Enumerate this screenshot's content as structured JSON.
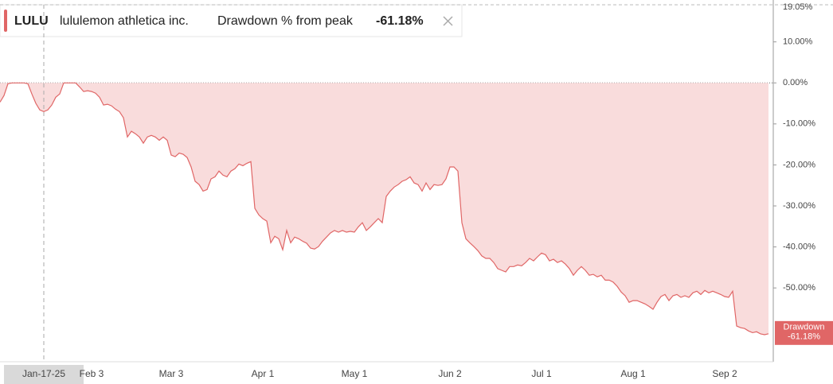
{
  "chart_data": {
    "type": "area",
    "legend": {
      "ticker": "LULU",
      "company": "lululemon athletica inc.",
      "metric": "Drawdown % from peak"
    },
    "crosshair_category": "Jan-17-25",
    "categories": [
      null,
      null,
      null,
      null,
      null,
      null,
      null,
      null,
      null,
      null,
      null,
      "Jan-17-25",
      null,
      null,
      null,
      null,
      null,
      null,
      null,
      null,
      null,
      null,
      null,
      "Feb 3",
      null,
      null,
      null,
      null,
      null,
      null,
      null,
      null,
      null,
      null,
      null,
      null,
      null,
      null,
      null,
      null,
      null,
      null,
      null,
      "Mar 3",
      null,
      null,
      null,
      null,
      null,
      null,
      null,
      null,
      null,
      null,
      null,
      null,
      null,
      null,
      null,
      null,
      null,
      null,
      null,
      null,
      null,
      null,
      "Apr 1",
      null,
      null,
      null,
      null,
      null,
      null,
      null,
      null,
      null,
      null,
      null,
      null,
      null,
      null,
      null,
      null,
      null,
      null,
      null,
      null,
      null,
      null,
      "May 1",
      null,
      null,
      null,
      null,
      null,
      null,
      null,
      null,
      null,
      null,
      null,
      null,
      null,
      null,
      null,
      null,
      null,
      null,
      null,
      null,
      null,
      null,
      null,
      "Jun 2",
      null,
      null,
      null,
      null,
      null,
      null,
      null,
      null,
      null,
      null,
      null,
      null,
      null,
      null,
      null,
      null,
      null,
      null,
      null,
      null,
      null,
      null,
      "Jul 1",
      null,
      null,
      null,
      null,
      null,
      null,
      null,
      null,
      null,
      null,
      null,
      null,
      null,
      null,
      null,
      null,
      null,
      null,
      null,
      null,
      null,
      null,
      "Aug 1",
      null,
      null,
      null,
      null,
      null,
      null,
      null,
      null,
      null,
      null,
      null,
      null,
      null,
      null,
      null,
      null,
      null,
      null,
      null,
      null,
      null,
      null,
      "Sep 2",
      null,
      null,
      null,
      null,
      null,
      null,
      null,
      null,
      null,
      null,
      null
    ],
    "series": [
      {
        "name": "Drawdown",
        "color": "#e06666",
        "fill": "#f9dcdc",
        "value_label": "-61.18%",
        "values": [
          -4.7,
          -3.1,
          -0.2,
          0,
          0,
          0,
          0,
          -0.2,
          -2.7,
          -5.0,
          -6.6,
          -7.0,
          -6.6,
          -5.4,
          -3.5,
          -2.7,
          0,
          0,
          0,
          0,
          -1.0,
          -2.1,
          -1.9,
          -2.1,
          -2.5,
          -3.5,
          -5.4,
          -5.2,
          -5.6,
          -6.4,
          -7.0,
          -8.5,
          -13.2,
          -11.8,
          -12.4,
          -13.2,
          -14.7,
          -13.2,
          -12.8,
          -13.2,
          -14.0,
          -13.2,
          -14.0,
          -17.6,
          -18.0,
          -17.1,
          -17.4,
          -18.2,
          -20.5,
          -24.0,
          -24.8,
          -26.4,
          -26.0,
          -23.4,
          -22.9,
          -21.5,
          -22.5,
          -22.9,
          -21.5,
          -20.9,
          -19.8,
          -20.2,
          -19.6,
          -19.2,
          -30.6,
          -32.2,
          -33.1,
          -33.7,
          -39.0,
          -37.4,
          -38.0,
          -40.7,
          -36.0,
          -39.0,
          -37.6,
          -38.0,
          -38.6,
          -39.1,
          -40.3,
          -40.5,
          -39.9,
          -38.6,
          -37.6,
          -36.6,
          -36.0,
          -36.4,
          -36.0,
          -36.4,
          -36.2,
          -36.4,
          -35.1,
          -34.1,
          -36.0,
          -35.1,
          -34.1,
          -33.1,
          -34.1,
          -27.7,
          -26.4,
          -25.4,
          -24.8,
          -24.0,
          -23.6,
          -22.9,
          -24.4,
          -24.8,
          -26.4,
          -24.4,
          -26.0,
          -24.8,
          -25.0,
          -24.8,
          -23.4,
          -20.5,
          -20.5,
          -21.5,
          -34.1,
          -38.0,
          -39.0,
          -39.9,
          -40.9,
          -42.2,
          -42.8,
          -42.8,
          -43.8,
          -45.3,
          -45.7,
          -46.1,
          -44.8,
          -44.8,
          -44.4,
          -44.6,
          -43.8,
          -42.8,
          -43.4,
          -42.4,
          -41.5,
          -41.9,
          -43.4,
          -43.0,
          -43.8,
          -43.4,
          -44.2,
          -45.3,
          -46.9,
          -45.7,
          -44.8,
          -45.7,
          -46.9,
          -46.7,
          -47.3,
          -46.9,
          -48.1,
          -48.1,
          -48.6,
          -49.6,
          -51.0,
          -51.9,
          -53.5,
          -53.1,
          -53.1,
          -53.5,
          -53.9,
          -54.5,
          -55.2,
          -53.5,
          -52.1,
          -51.6,
          -53.1,
          -51.9,
          -51.6,
          -52.3,
          -51.9,
          -52.3,
          -51.2,
          -50.8,
          -51.6,
          -50.6,
          -51.2,
          -50.8,
          -51.2,
          -51.6,
          -52.1,
          -52.3,
          -50.8,
          -59.3,
          -59.7,
          -59.9,
          -60.5,
          -60.9,
          -60.7,
          -61.2,
          -61.4,
          -61.18
        ]
      }
    ],
    "ylim": [
      -68,
      19.05
    ],
    "yticks": [
      {
        "value": 19.05,
        "label": "19.05%"
      },
      {
        "value": 10,
        "label": "10.00%"
      },
      {
        "value": 0,
        "label": "0.00%"
      },
      {
        "value": -10,
        "label": "-10.00%"
      },
      {
        "value": -20,
        "label": "-20.00%"
      },
      {
        "value": -30,
        "label": "-30.00%"
      },
      {
        "value": -40,
        "label": "-40.00%"
      },
      {
        "value": -50,
        "label": "-50.00%"
      }
    ]
  }
}
